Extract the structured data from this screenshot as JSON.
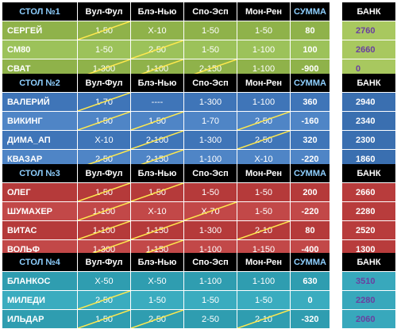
{
  "columns": [
    "Вул-Фул",
    "Блэ-Нью",
    "Спо-Эсп",
    "Мон-Рен",
    "СУММА"
  ],
  "bank_label": "БАНК",
  "tables": [
    {
      "title": "СТОЛ №1",
      "colors": {
        "row_a": "#8fb24a",
        "row_b": "#9cc25a",
        "bank_bg": "#a8c85f",
        "bank_text": "#6a3fa0"
      },
      "rows": [
        {
          "name": "СЕРГЕЙ",
          "cells": [
            "1-50",
            "X-10",
            "1-50",
            "1-50"
          ],
          "strike": [
            true,
            false,
            false,
            false
          ],
          "sum": "80",
          "bank": "2760"
        },
        {
          "name": "CM80",
          "cells": [
            "1-50",
            "2-50",
            "1-50",
            "1-100"
          ],
          "strike": [
            false,
            true,
            false,
            false
          ],
          "sum": "100",
          "bank": "2660"
        },
        {
          "name": "СВАТ",
          "cells": [
            "1-300",
            "1-100",
            "2-150",
            "1-100"
          ],
          "strike": [
            true,
            true,
            true,
            false
          ],
          "sum": "-900",
          "bank": "0"
        }
      ]
    },
    {
      "title": "СТОЛ №2",
      "colors": {
        "row_a": "#3f75b8",
        "row_b": "#4f85c6",
        "bank_bg": "#3a6fb0",
        "bank_text": "#ffffff"
      },
      "rows": [
        {
          "name": "ВАЛЕРИЙ",
          "cells": [
            "1-70",
            "----",
            "1-300",
            "1-100"
          ],
          "strike": [
            true,
            false,
            false,
            false
          ],
          "sum": "360",
          "bank": "2940"
        },
        {
          "name": "ВИКИНГ",
          "cells": [
            "1-50",
            "1-50",
            "1-70",
            "2-50"
          ],
          "strike": [
            true,
            true,
            false,
            true
          ],
          "sum": "-160",
          "bank": "2340"
        },
        {
          "name": "ДИМА_АП",
          "cells": [
            "X-10",
            "2-100",
            "1-300",
            "2-50"
          ],
          "strike": [
            false,
            true,
            false,
            true
          ],
          "sum": "320",
          "bank": "2300"
        },
        {
          "name": "КВАЗАР",
          "cells": [
            "2-50",
            "2-150",
            "1-100",
            "X-10"
          ],
          "strike": [
            true,
            true,
            false,
            false
          ],
          "sum": "-220",
          "bank": "1860"
        }
      ]
    },
    {
      "title": "СТОЛ №3",
      "colors": {
        "row_a": "#b53a3a",
        "row_b": "#c24848",
        "bank_bg": "#b83c3c",
        "bank_text": "#ffffff"
      },
      "rows": [
        {
          "name": "ОЛЕГ",
          "cells": [
            "1-50",
            "1-50",
            "1-50",
            "1-50"
          ],
          "strike": [
            true,
            true,
            false,
            false
          ],
          "sum": "200",
          "bank": "2660"
        },
        {
          "name": "ШУМАХЕР",
          "cells": [
            "1-100",
            "X-10",
            "X-70",
            "1-50"
          ],
          "strike": [
            true,
            false,
            true,
            false
          ],
          "sum": "-220",
          "bank": "2280"
        },
        {
          "name": "ВИТАС",
          "cells": [
            "1-100",
            "1-150",
            "1-300",
            "2-10"
          ],
          "strike": [
            true,
            true,
            false,
            true
          ],
          "sum": "80",
          "bank": "2520"
        },
        {
          "name": "ВОЛЬФ",
          "cells": [
            "1-300",
            "1-150",
            "1-100",
            "1-150"
          ],
          "strike": [
            true,
            true,
            false,
            false
          ],
          "sum": "-400",
          "bank": "1300"
        }
      ]
    },
    {
      "title": "СТОЛ №4",
      "colors": {
        "row_a": "#2f9db0",
        "row_b": "#3aacbf",
        "bank_bg": "#38a8bc",
        "bank_text": "#6a3fa0"
      },
      "rows": [
        {
          "name": "БЛАНКОС",
          "cells": [
            "X-50",
            "X-50",
            "1-100",
            "1-100"
          ],
          "strike": [
            false,
            false,
            false,
            false
          ],
          "sum": "630",
          "bank": "3510"
        },
        {
          "name": "МИЛЕДИ",
          "cells": [
            "2-50",
            "1-50",
            "1-50",
            "1-50"
          ],
          "strike": [
            true,
            false,
            false,
            false
          ],
          "sum": "0",
          "bank": "2280"
        },
        {
          "name": "ИЛЬДАР",
          "cells": [
            "1-50",
            "2-50",
            "2-50",
            "2-10"
          ],
          "strike": [
            true,
            true,
            false,
            true
          ],
          "sum": "-320",
          "bank": "2060"
        }
      ]
    }
  ]
}
